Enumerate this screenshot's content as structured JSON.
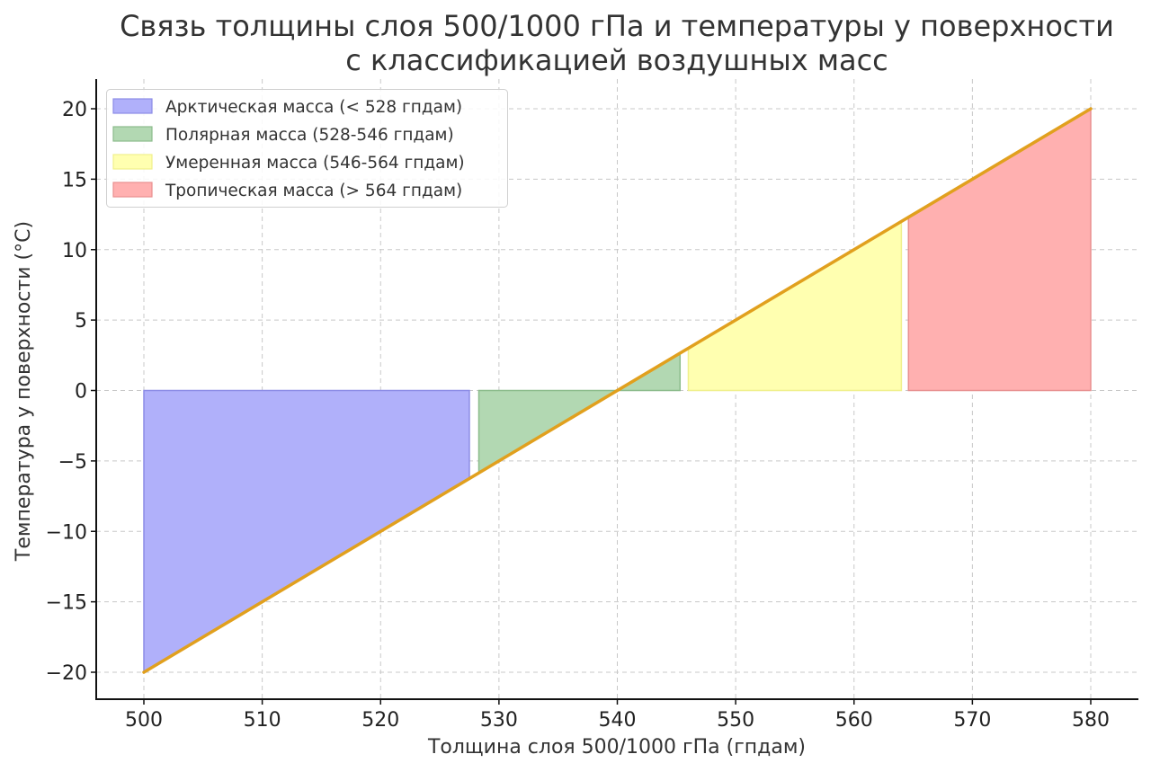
{
  "chart_data": {
    "type": "area",
    "title": "Связь толщины слоя 500/1000 гПа и температуры у поверхности с классификацией воздушных масс",
    "title_lines": [
      "Связь толщины слоя 500/1000 гПа и температуры у поверхности",
      "с классификацией воздушных масс"
    ],
    "xlabel": "Толщина слоя 500/1000 гПа (гпдам)",
    "ylabel": "Температура у поверхности (°C)",
    "xlim": [
      496,
      584
    ],
    "ylim": [
      -22,
      22
    ],
    "grid": true,
    "legend_position": "upper left",
    "x_ticks": [
      500,
      510,
      520,
      530,
      540,
      550,
      560,
      570,
      580
    ],
    "x_tick_labels": [
      "500",
      "510",
      "520",
      "530",
      "540",
      "550",
      "560",
      "570",
      "580"
    ],
    "y_ticks": [
      20,
      15,
      10,
      5,
      0,
      -5,
      -10,
      -15,
      -20
    ],
    "y_tick_labels": [
      "20",
      "15",
      "10",
      "5",
      "0",
      "−5",
      "−10",
      "−15",
      "−20"
    ],
    "line": {
      "name": "Температура у поверхности",
      "color": "#e1a01e",
      "x": [
        500,
        580
      ],
      "y": [
        -20,
        20
      ]
    },
    "series": [
      {
        "name": "Арктическая масса (< 528 гпдам)",
        "x_start": 500,
        "x_end": 527.5,
        "fill": "#b0b0fa",
        "edge": "#8c8ce6"
      },
      {
        "name": "Полярная масса (528-546 гпдам)",
        "x_start": 528.3,
        "x_end": 545.3,
        "fill": "#b2d8b2",
        "edge": "#8cbc8c"
      },
      {
        "name": "Умеренная масса (546-564 гпдам)",
        "x_start": 546,
        "x_end": 564,
        "fill": "#ffffb0",
        "edge": "#f0f08c"
      },
      {
        "name": "Тропическая масса (> 564 гпдам)",
        "x_start": 564.6,
        "x_end": 580,
        "fill": "#ffb0b0",
        "edge": "#e89090"
      }
    ],
    "fill_between": "line and y=0"
  },
  "legend": {
    "items": [
      {
        "label": "Арктическая масса (< 528 гпдам)",
        "color": "#b0b0fa"
      },
      {
        "label": "Полярная масса (528-546 гпдам)",
        "color": "#b2d8b2"
      },
      {
        "label": "Умеренная масса (546-564 гпдам)",
        "color": "#ffffb0"
      },
      {
        "label": "Тропическая масса (> 564 гпдам)",
        "color": "#ffb0b0"
      }
    ]
  }
}
